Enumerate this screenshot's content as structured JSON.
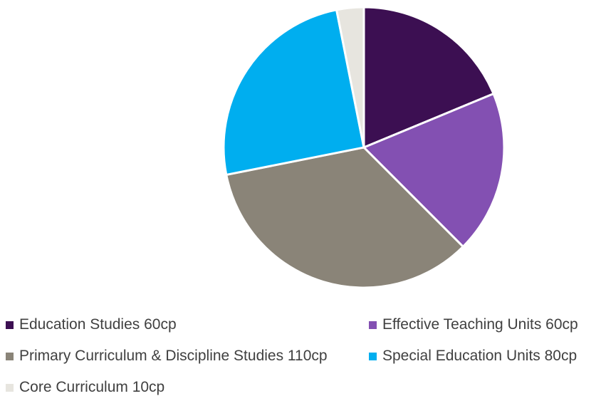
{
  "chart_data": {
    "type": "pie",
    "title": "",
    "legend_position": "bottom",
    "slices": [
      {
        "label": "Education Studies 60cp",
        "value": 60,
        "color": "#3c0f52"
      },
      {
        "label": "Effective Teaching Units 60cp",
        "value": 60,
        "color": "#8350b2"
      },
      {
        "label": "Primary Curriculum & Discipline Studies 110cp",
        "value": 110,
        "color": "#8a8478"
      },
      {
        "label": "Special Education Units 80cp",
        "value": 80,
        "color": "#00aeef"
      },
      {
        "label": "Core Curriculum 10cp",
        "value": 10,
        "color": "#e7e5df"
      }
    ]
  }
}
